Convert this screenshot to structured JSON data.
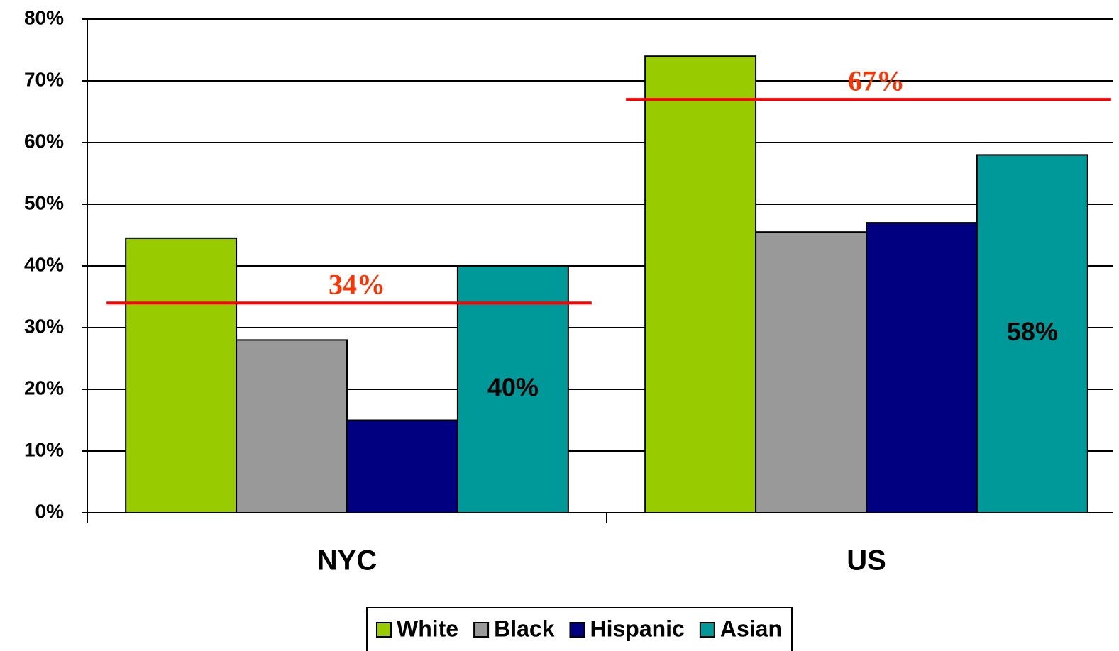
{
  "chart_data": {
    "type": "bar",
    "categories": [
      "NYC",
      "US"
    ],
    "series": [
      {
        "name": "White",
        "color": "#99cc00",
        "values": [
          44.5,
          74
        ]
      },
      {
        "name": "Black",
        "color": "#999999",
        "values": [
          28,
          45.5
        ]
      },
      {
        "name": "Hispanic",
        "color": "#000080",
        "values": [
          15,
          47
        ]
      },
      {
        "name": "Asian",
        "color": "#009999",
        "values": [
          40,
          58
        ],
        "value_labels": [
          "40%",
          "58%"
        ]
      }
    ],
    "averages": {
      "values": [
        34,
        67
      ],
      "value_labels": [
        "34%",
        "67%"
      ],
      "color": "#ff0000"
    },
    "ylim": [
      0,
      80
    ],
    "yticks": [
      {
        "value": 0,
        "label": "0%"
      },
      {
        "value": 10,
        "label": "10%"
      },
      {
        "value": 20,
        "label": "20%"
      },
      {
        "value": 30,
        "label": "30%"
      },
      {
        "value": 40,
        "label": "40%"
      },
      {
        "value": 50,
        "label": "50%"
      },
      {
        "value": 60,
        "label": "60%"
      },
      {
        "value": 70,
        "label": "70%"
      },
      {
        "value": 80,
        "label": "80%"
      }
    ],
    "grid": true,
    "legend": "bottom"
  }
}
